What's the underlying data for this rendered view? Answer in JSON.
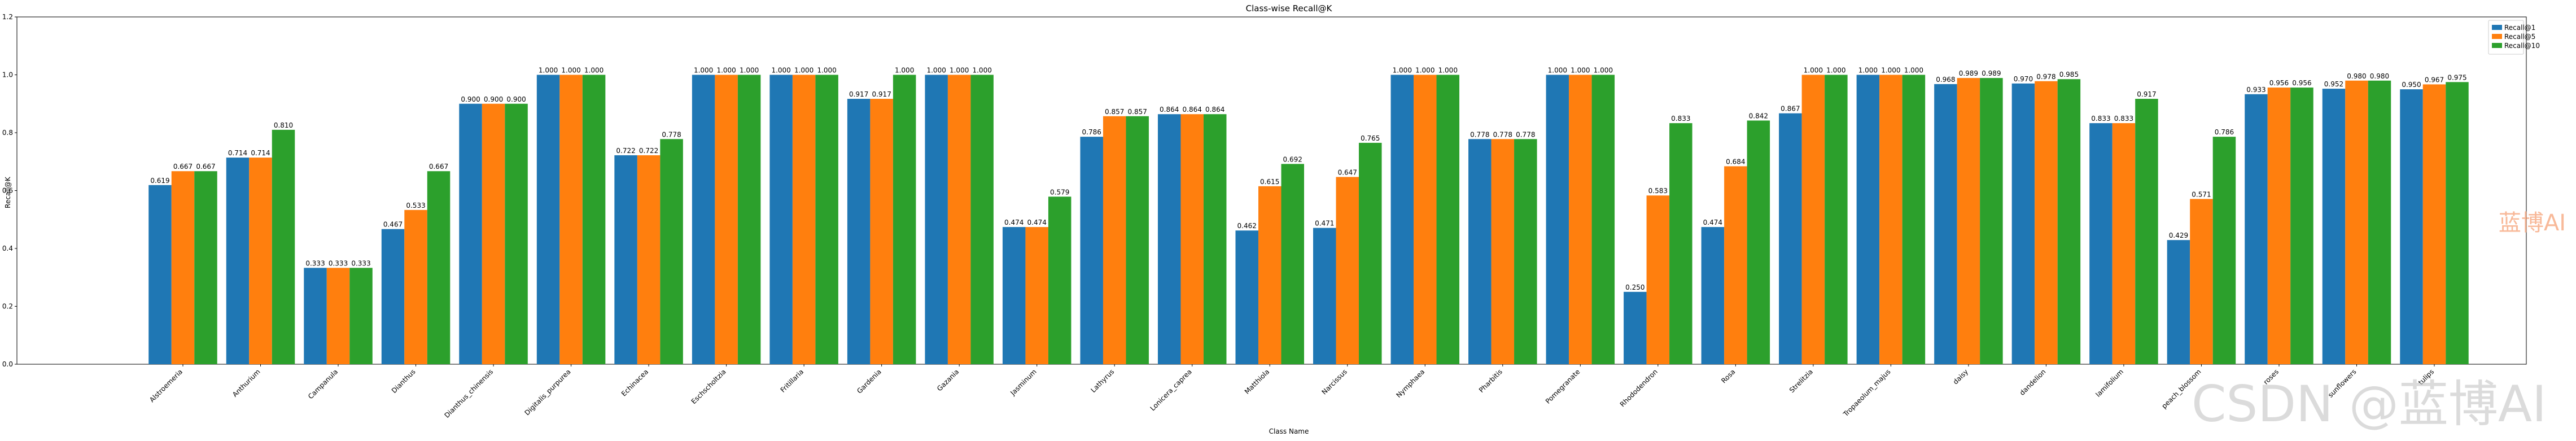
{
  "chart_data": {
    "type": "bar",
    "title": "Class-wise Recall@K",
    "xlabel": "Class Name",
    "ylabel": "Recall@K",
    "ylim": [
      0,
      1.2
    ],
    "yticks": [
      "0.0",
      "0.2",
      "0.4",
      "0.6",
      "0.8",
      "1.0",
      "1.2"
    ],
    "grid": false,
    "legend_position": "top-right",
    "categories": [
      "Alstroemeria",
      "Anthurium",
      "Campanula",
      "Dianthus",
      "Dianthus_chinensis",
      "Digitalis_purpurea",
      "Echinacea",
      "Eschscholtzia",
      "Fritillaria",
      "Gardenia",
      "Gazania",
      "Jasminum",
      "Lathyrus",
      "Lonicera_caprea",
      "Matthiola",
      "Narcissus",
      "Nymphaea",
      "Pharbitis",
      "Pomegranate",
      "Rhododendron",
      "Rosa",
      "Strelitzia",
      "Tropaeolum_majus",
      "daisy",
      "dandelion",
      "lamifolium",
      "peach_blossom",
      "roses",
      "sunflowers",
      "tulips"
    ],
    "series": [
      {
        "name": "Recall@1",
        "color": "#1f77b4",
        "values": [
          0.619,
          0.714,
          0.333,
          0.467,
          0.9,
          1.0,
          0.722,
          1.0,
          1.0,
          0.917,
          1.0,
          0.474,
          0.786,
          0.864,
          0.462,
          0.471,
          1.0,
          0.778,
          1.0,
          0.25,
          0.474,
          0.867,
          1.0,
          0.968,
          0.97,
          0.833,
          0.429,
          0.933,
          0.952,
          0.95
        ]
      },
      {
        "name": "Recall@5",
        "color": "#ff7f0e",
        "values": [
          0.667,
          0.714,
          0.333,
          0.533,
          0.9,
          1.0,
          0.722,
          1.0,
          1.0,
          0.917,
          1.0,
          0.474,
          0.857,
          0.864,
          0.615,
          0.647,
          1.0,
          0.778,
          1.0,
          0.583,
          0.684,
          1.0,
          1.0,
          0.989,
          0.978,
          0.833,
          0.571,
          0.956,
          0.98,
          0.967
        ]
      },
      {
        "name": "Recall@10",
        "color": "#2ca02c",
        "values": [
          0.667,
          0.81,
          0.333,
          0.667,
          0.9,
          1.0,
          0.778,
          1.0,
          1.0,
          1.0,
          1.0,
          0.579,
          0.857,
          0.864,
          0.692,
          0.765,
          1.0,
          0.778,
          1.0,
          0.833,
          0.842,
          1.0,
          1.0,
          0.989,
          0.985,
          0.917,
          0.786,
          0.956,
          0.98,
          0.975
        ]
      }
    ]
  },
  "watermarks": {
    "brand_small": "蓝博AI",
    "brand_large": "CSDN @蓝博AI"
  }
}
